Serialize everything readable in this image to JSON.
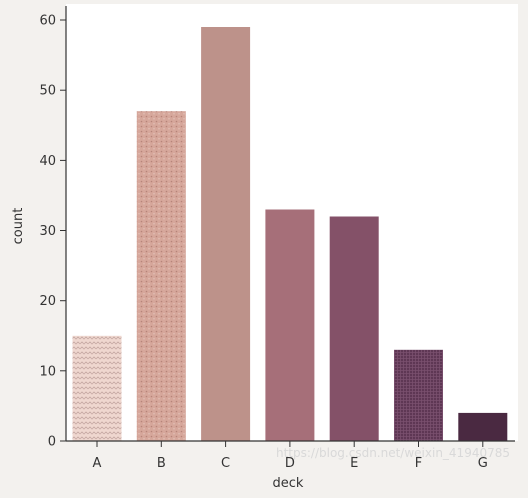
{
  "chart_data": {
    "type": "bar",
    "categories": [
      "A",
      "B",
      "C",
      "D",
      "E",
      "F",
      "G"
    ],
    "values": [
      15,
      47,
      59,
      33,
      32,
      13,
      4
    ],
    "xlabel": "deck",
    "ylabel": "count",
    "ylim": [
      0,
      62
    ],
    "yticks": [
      0,
      10,
      20,
      30,
      40,
      50,
      60
    ],
    "grid": false,
    "bar_colors": [
      "#efd7cf",
      "#d6a79b",
      "#bd928a",
      "#a66f79",
      "#845168",
      "#5e3754",
      "#4a2941"
    ],
    "textured_bars": [
      "A",
      "B",
      "F"
    ]
  },
  "watermark": {
    "text": "https://blog.csdn.net/weixin_41940785"
  }
}
